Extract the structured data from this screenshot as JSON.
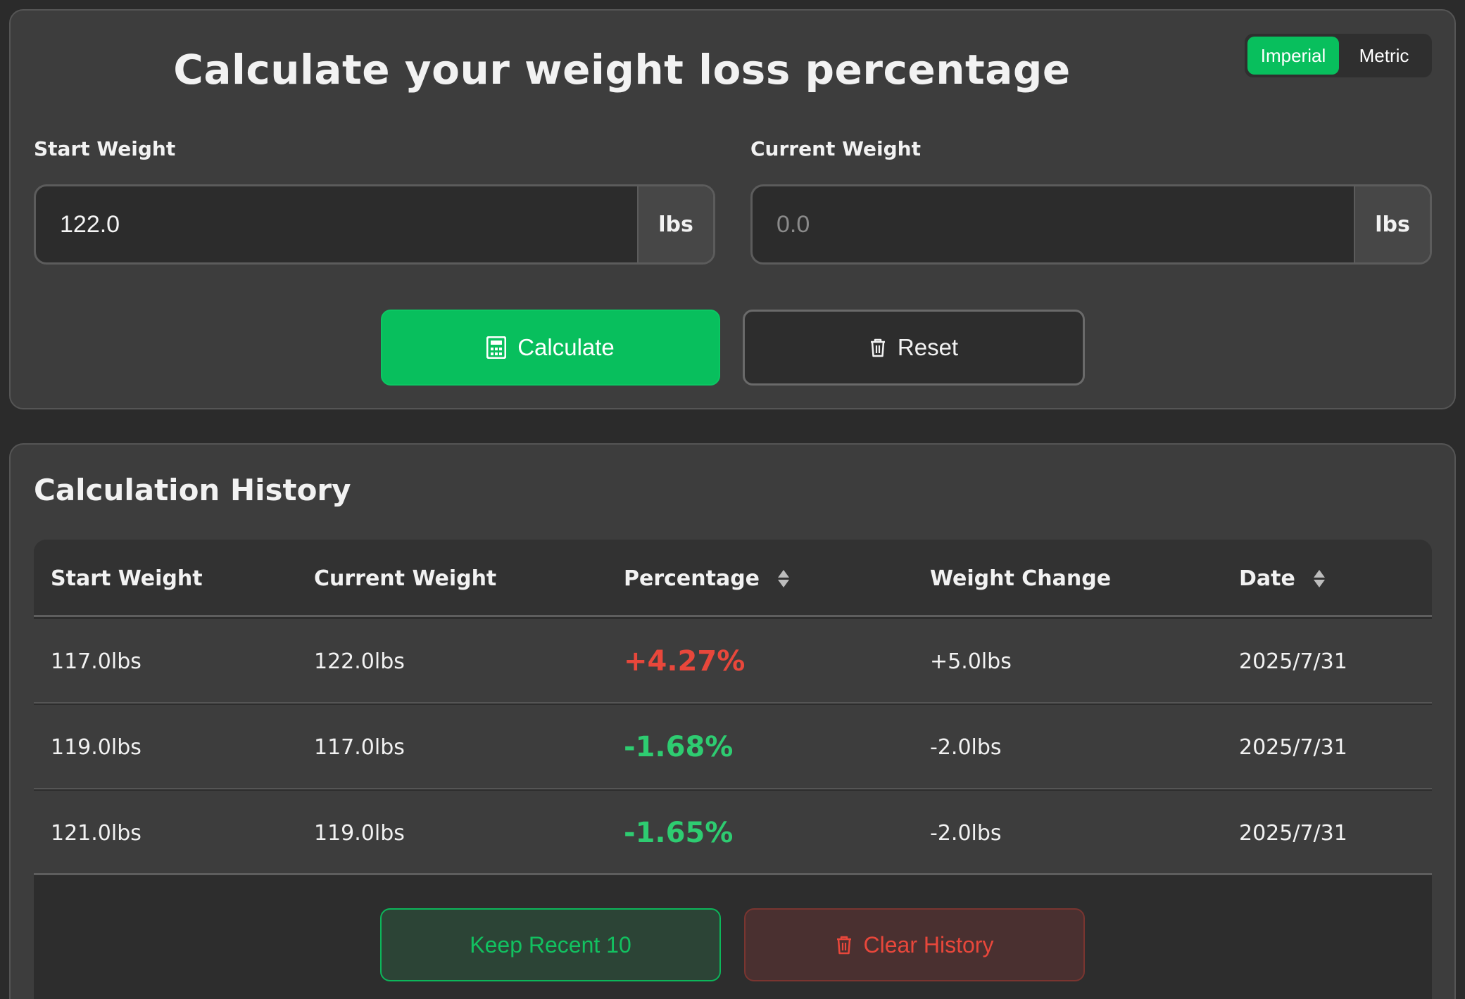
{
  "calculator": {
    "title": "Calculate your weight loss percentage",
    "unit_toggle": {
      "imperial": "Imperial",
      "metric": "Metric",
      "selected": "Imperial"
    },
    "start_weight": {
      "label": "Start Weight",
      "value": "122.0",
      "unit": "lbs"
    },
    "current_weight": {
      "label": "Current Weight",
      "placeholder": "0.0",
      "value": "",
      "unit": "lbs"
    },
    "calculate_label": "Calculate",
    "reset_label": "Reset",
    "accent_color": "#08bf5d"
  },
  "history": {
    "title": "Calculation History",
    "columns": [
      "Start Weight",
      "Current Weight",
      "Percentage",
      "Weight Change",
      "Date"
    ],
    "rows": [
      {
        "start": "117.0lbs",
        "current": "122.0lbs",
        "percentage": "+4.27%",
        "change": "+5.0lbs",
        "date": "2025/7/31"
      },
      {
        "start": "119.0lbs",
        "current": "117.0lbs",
        "percentage": "-1.68%",
        "change": "-2.0lbs",
        "date": "2025/7/31"
      },
      {
        "start": "121.0lbs",
        "current": "119.0lbs",
        "percentage": "-1.65%",
        "change": "-2.0lbs",
        "date": "2025/7/31"
      }
    ],
    "keep_recent_label": "Keep Recent 10",
    "clear_history_label": "Clear History",
    "positive_color": "#e8473b",
    "negative_color": "#2ecc71"
  }
}
